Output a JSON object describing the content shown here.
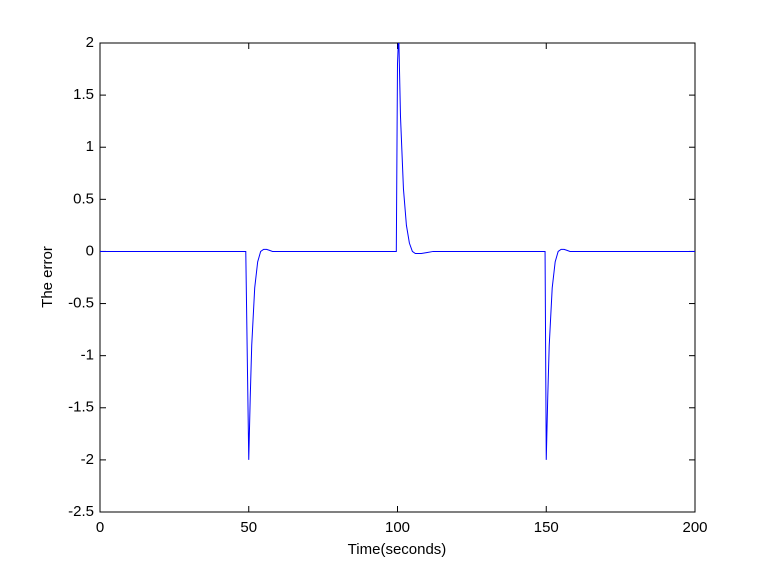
{
  "chart_data": {
    "type": "line",
    "x_label": "Time(seconds)",
    "y_label": "The error",
    "x": [
      0,
      49,
      49.6,
      50,
      50.5,
      51,
      52,
      53,
      54,
      55,
      56,
      57,
      58,
      60,
      99.6,
      100,
      100.4,
      101,
      102,
      103,
      104,
      105,
      106,
      107,
      108,
      110,
      112,
      149,
      149.6,
      150,
      150.5,
      151,
      152,
      153,
      154,
      155,
      156,
      157,
      158,
      160,
      200
    ],
    "series": [
      {
        "name": "error",
        "color": "#0000ff",
        "values": [
          0,
          0,
          -1.2,
          -2,
          -1.4,
          -0.9,
          -0.35,
          -0.1,
          0.0,
          0.02,
          0.02,
          0.01,
          0,
          0,
          0,
          1.8,
          2.1,
          1.3,
          0.6,
          0.25,
          0.08,
          0,
          -0.02,
          -0.02,
          -0.02,
          -0.01,
          0,
          0,
          0,
          -2,
          -1.4,
          -0.9,
          -0.35,
          -0.1,
          0.0,
          0.02,
          0.02,
          0.01,
          0,
          0,
          0
        ]
      }
    ],
    "xlim": [
      0,
      200
    ],
    "xticks": [
      0,
      50,
      100,
      150,
      200
    ],
    "ylim": [
      -2.5,
      2
    ],
    "yticks": [
      -2.5,
      -2,
      -1.5,
      -1,
      -0.5,
      0,
      0.5,
      1,
      1.5,
      2
    ]
  }
}
